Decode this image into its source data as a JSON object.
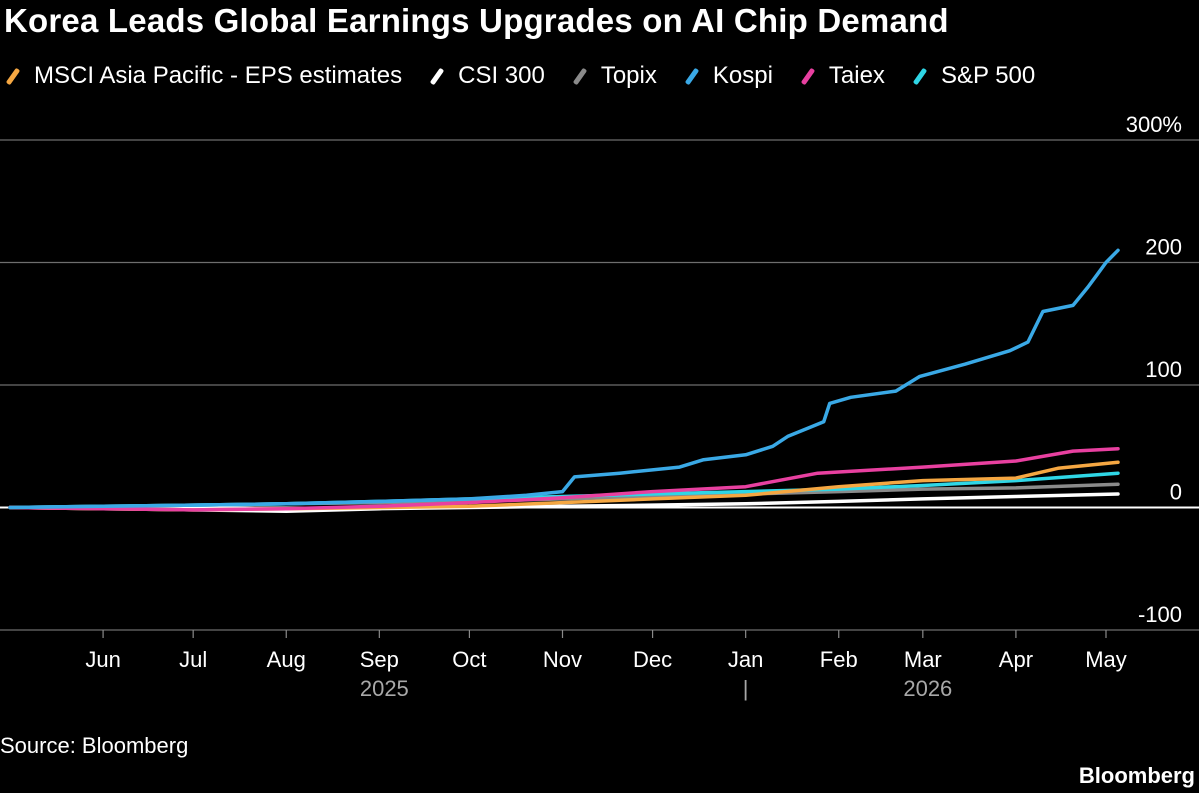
{
  "chart_data": {
    "type": "line",
    "title": "Korea Leads Global Earnings Upgrades on AI Chip Demand",
    "ylim": [
      -100,
      300
    ],
    "yticks": [
      {
        "value": 300,
        "label": "300%"
      },
      {
        "value": 200,
        "label": "200"
      },
      {
        "value": 100,
        "label": "100"
      },
      {
        "value": 0,
        "label": "0"
      },
      {
        "value": -100,
        "label": "-100"
      }
    ],
    "x_start": "2025-05-01",
    "x_end": "2026-05-05",
    "x_ticks": [
      {
        "date": "2025-06-01",
        "label": "Jun"
      },
      {
        "date": "2025-07-01",
        "label": "Jul"
      },
      {
        "date": "2025-08-01",
        "label": "Aug"
      },
      {
        "date": "2025-09-01",
        "label": "Sep"
      },
      {
        "date": "2025-10-01",
        "label": "Oct"
      },
      {
        "date": "2025-11-01",
        "label": "Nov"
      },
      {
        "date": "2025-12-01",
        "label": "Dec"
      },
      {
        "date": "2026-01-01",
        "label": "Jan"
      },
      {
        "date": "2026-02-01",
        "label": "Feb"
      },
      {
        "date": "2026-03-01",
        "label": "Mar"
      },
      {
        "date": "2026-04-01",
        "label": "Apr"
      },
      {
        "date": "2026-05-01",
        "label": "May"
      }
    ],
    "year_labels": [
      {
        "date": "2025-09-01",
        "label": "2025"
      },
      {
        "date": "2026-01-01",
        "label": "|"
      },
      {
        "date": "2026-03-01",
        "label": "2026"
      }
    ],
    "grid": true,
    "legend_position": "top-left",
    "series": [
      {
        "name": "MSCI Asia Pacific - EPS estimates",
        "color": "#f5a742",
        "points": [
          [
            "2025-05-01",
            0
          ],
          [
            "2025-06-01",
            -1
          ],
          [
            "2025-07-01",
            -2
          ],
          [
            "2025-08-01",
            -1
          ],
          [
            "2025-09-01",
            0
          ],
          [
            "2025-10-01",
            1
          ],
          [
            "2025-11-01",
            4
          ],
          [
            "2025-12-01",
            7
          ],
          [
            "2026-01-01",
            10
          ],
          [
            "2026-02-01",
            17
          ],
          [
            "2026-03-01",
            22
          ],
          [
            "2026-04-01",
            24
          ],
          [
            "2026-04-15",
            32
          ],
          [
            "2026-05-05",
            37
          ]
        ]
      },
      {
        "name": "CSI 300",
        "color": "#ffffff",
        "points": [
          [
            "2025-05-01",
            0
          ],
          [
            "2025-06-01",
            -1
          ],
          [
            "2025-07-01",
            -2
          ],
          [
            "2025-08-01",
            -3
          ],
          [
            "2025-09-01",
            -1
          ],
          [
            "2025-10-01",
            0
          ],
          [
            "2025-11-01",
            1
          ],
          [
            "2025-12-01",
            2
          ],
          [
            "2026-01-01",
            3
          ],
          [
            "2026-02-01",
            5
          ],
          [
            "2026-03-01",
            7
          ],
          [
            "2026-04-01",
            9
          ],
          [
            "2026-05-05",
            11
          ]
        ]
      },
      {
        "name": "Topix",
        "color": "#8a8a8a",
        "points": [
          [
            "2025-05-01",
            0
          ],
          [
            "2025-06-01",
            1
          ],
          [
            "2025-07-01",
            2
          ],
          [
            "2025-08-01",
            3
          ],
          [
            "2025-09-01",
            4
          ],
          [
            "2025-10-01",
            5
          ],
          [
            "2025-11-01",
            7
          ],
          [
            "2025-12-01",
            9
          ],
          [
            "2026-01-01",
            11
          ],
          [
            "2026-02-01",
            13
          ],
          [
            "2026-03-01",
            15
          ],
          [
            "2026-04-01",
            16
          ],
          [
            "2026-05-05",
            19
          ]
        ]
      },
      {
        "name": "Kospi",
        "color": "#3aa9e6",
        "points": [
          [
            "2025-05-01",
            0
          ],
          [
            "2025-06-01",
            1
          ],
          [
            "2025-07-01",
            2
          ],
          [
            "2025-08-01",
            3
          ],
          [
            "2025-09-01",
            5
          ],
          [
            "2025-10-01",
            7
          ],
          [
            "2025-10-20",
            10
          ],
          [
            "2025-11-01",
            13
          ],
          [
            "2025-11-05",
            25
          ],
          [
            "2025-11-20",
            28
          ],
          [
            "2025-12-10",
            33
          ],
          [
            "2025-12-18",
            39
          ],
          [
            "2026-01-01",
            43
          ],
          [
            "2026-01-10",
            50
          ],
          [
            "2026-01-15",
            58
          ],
          [
            "2026-01-22",
            65
          ],
          [
            "2026-01-27",
            70
          ],
          [
            "2026-01-29",
            85
          ],
          [
            "2026-02-05",
            90
          ],
          [
            "2026-02-20",
            95
          ],
          [
            "2026-02-28",
            107
          ],
          [
            "2026-03-15",
            117
          ],
          [
            "2026-03-30",
            128
          ],
          [
            "2026-04-05",
            135
          ],
          [
            "2026-04-10",
            160
          ],
          [
            "2026-04-20",
            165
          ],
          [
            "2026-04-25",
            180
          ],
          [
            "2026-04-28",
            190
          ],
          [
            "2026-05-01",
            200
          ],
          [
            "2026-05-05",
            210
          ]
        ]
      },
      {
        "name": "Taiex",
        "color": "#e840a0",
        "points": [
          [
            "2025-05-01",
            0
          ],
          [
            "2025-06-01",
            -1
          ],
          [
            "2025-07-01",
            -2
          ],
          [
            "2025-08-01",
            -1
          ],
          [
            "2025-09-01",
            1
          ],
          [
            "2025-10-01",
            4
          ],
          [
            "2025-11-01",
            8
          ],
          [
            "2025-12-01",
            13
          ],
          [
            "2026-01-01",
            17
          ],
          [
            "2026-01-25",
            28
          ],
          [
            "2026-02-01",
            29
          ],
          [
            "2026-03-01",
            33
          ],
          [
            "2026-04-01",
            38
          ],
          [
            "2026-04-20",
            46
          ],
          [
            "2026-05-05",
            48
          ]
        ]
      },
      {
        "name": "S&P 500",
        "color": "#2fd6e6",
        "points": [
          [
            "2025-05-01",
            0
          ],
          [
            "2025-06-01",
            1
          ],
          [
            "2025-07-01",
            2
          ],
          [
            "2025-08-01",
            3
          ],
          [
            "2025-09-01",
            5
          ],
          [
            "2025-10-01",
            7
          ],
          [
            "2025-11-01",
            9
          ],
          [
            "2025-12-01",
            11
          ],
          [
            "2026-01-01",
            13
          ],
          [
            "2026-02-01",
            15
          ],
          [
            "2026-03-01",
            18
          ],
          [
            "2026-04-01",
            22
          ],
          [
            "2026-05-05",
            28
          ]
        ]
      }
    ]
  },
  "source": "Source: Bloomberg",
  "brand": "Bloomberg"
}
